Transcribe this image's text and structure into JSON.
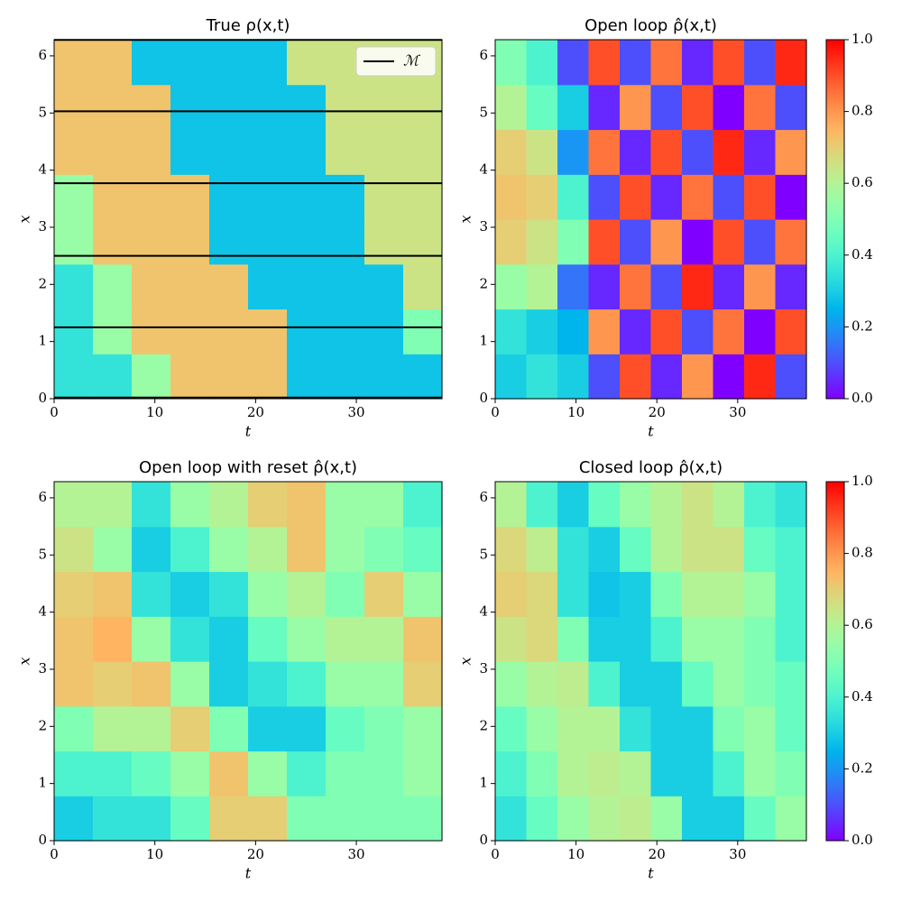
{
  "chart_data": [
    {
      "type": "heatmap",
      "title": "True ρ(x,t)",
      "xlabel": "t",
      "ylabel": "x",
      "xlim": [
        0,
        38.5
      ],
      "ylim": [
        0,
        6.283
      ],
      "xticks": [
        0,
        10,
        20,
        30
      ],
      "yticks": [
        0,
        1,
        2,
        3,
        4,
        5,
        6
      ],
      "zlim": [
        0,
        1
      ],
      "colormap": "rainbow",
      "z": [
        [
          0.35,
          0.35,
          0.55,
          0.72,
          0.72,
          0.72,
          0.28,
          0.28,
          0.28,
          0.28
        ],
        [
          0.35,
          0.55,
          0.72,
          0.72,
          0.72,
          0.72,
          0.28,
          0.28,
          0.28,
          0.5
        ],
        [
          0.35,
          0.55,
          0.72,
          0.72,
          0.72,
          0.28,
          0.28,
          0.28,
          0.28,
          0.65
        ],
        [
          0.55,
          0.72,
          0.72,
          0.72,
          0.28,
          0.28,
          0.28,
          0.28,
          0.65,
          0.65
        ],
        [
          0.55,
          0.72,
          0.72,
          0.72,
          0.28,
          0.28,
          0.28,
          0.28,
          0.65,
          0.65
        ],
        [
          0.72,
          0.72,
          0.72,
          0.28,
          0.28,
          0.28,
          0.28,
          0.65,
          0.65,
          0.65
        ],
        [
          0.72,
          0.72,
          0.72,
          0.28,
          0.28,
          0.28,
          0.28,
          0.65,
          0.65,
          0.65
        ],
        [
          0.72,
          0.72,
          0.28,
          0.28,
          0.28,
          0.28,
          0.65,
          0.65,
          0.65,
          0.65
        ]
      ],
      "hlines": [
        0.02,
        1.25,
        2.5,
        3.77,
        5.03,
        6.28
      ],
      "hline_color": "#000000",
      "legend": {
        "label": "ℳ",
        "loc": "upper right"
      }
    },
    {
      "type": "heatmap",
      "title": "Open loop ρ̂(x,t)",
      "xlabel": "t",
      "ylabel": "x",
      "xlim": [
        0,
        38.5
      ],
      "ylim": [
        0,
        6.283
      ],
      "xticks": [
        0,
        10,
        20,
        30
      ],
      "yticks": [
        0,
        1,
        2,
        3,
        4,
        5,
        6
      ],
      "zlim": [
        0,
        1
      ],
      "colormap": "rainbow",
      "z": [
        [
          0.3,
          0.35,
          0.3,
          0.1,
          0.9,
          0.05,
          0.8,
          0.0,
          0.95,
          0.1
        ],
        [
          0.35,
          0.3,
          0.25,
          0.8,
          0.05,
          0.9,
          0.1,
          0.85,
          0.0,
          0.9
        ],
        [
          0.55,
          0.6,
          0.15,
          0.05,
          0.85,
          0.1,
          0.95,
          0.05,
          0.8,
          0.05
        ],
        [
          0.7,
          0.65,
          0.5,
          0.9,
          0.1,
          0.8,
          0.0,
          0.9,
          0.1,
          0.85
        ],
        [
          0.72,
          0.7,
          0.4,
          0.1,
          0.9,
          0.05,
          0.85,
          0.1,
          0.9,
          0.0
        ],
        [
          0.7,
          0.65,
          0.2,
          0.85,
          0.05,
          0.9,
          0.1,
          0.95,
          0.05,
          0.8
        ],
        [
          0.6,
          0.45,
          0.3,
          0.05,
          0.8,
          0.1,
          0.9,
          0.0,
          0.85,
          0.1
        ],
        [
          0.5,
          0.4,
          0.1,
          0.9,
          0.1,
          0.85,
          0.05,
          0.9,
          0.1,
          0.95
        ]
      ],
      "colorbar": {
        "ticks": [
          {
            "value": 0,
            "label": "0.0"
          },
          {
            "value": 0.2,
            "label": "0.2"
          },
          {
            "value": 0.4,
            "label": "0.4"
          },
          {
            "value": 0.6,
            "label": "0.6"
          },
          {
            "value": 0.8,
            "label": "0.8"
          },
          {
            "value": 1,
            "label": "1.0"
          }
        ]
      }
    },
    {
      "type": "heatmap",
      "title": "Open loop with reset ρ̂(x,t)",
      "xlabel": "t",
      "ylabel": "x",
      "xlim": [
        0,
        38.5
      ],
      "ylim": [
        0,
        6.283
      ],
      "xticks": [
        0,
        10,
        20,
        30
      ],
      "yticks": [
        0,
        1,
        2,
        3,
        4,
        5,
        6
      ],
      "zlim": [
        0,
        1
      ],
      "colormap": "rainbow",
      "z": [
        [
          0.3,
          0.35,
          0.35,
          0.45,
          0.7,
          0.7,
          0.5,
          0.5,
          0.5,
          0.5
        ],
        [
          0.4,
          0.4,
          0.45,
          0.55,
          0.72,
          0.55,
          0.4,
          0.5,
          0.5,
          0.55
        ],
        [
          0.5,
          0.6,
          0.6,
          0.7,
          0.5,
          0.3,
          0.3,
          0.45,
          0.5,
          0.55
        ],
        [
          0.72,
          0.7,
          0.72,
          0.55,
          0.3,
          0.35,
          0.4,
          0.55,
          0.55,
          0.7
        ],
        [
          0.72,
          0.75,
          0.55,
          0.35,
          0.3,
          0.45,
          0.55,
          0.6,
          0.6,
          0.72
        ],
        [
          0.7,
          0.72,
          0.35,
          0.3,
          0.35,
          0.55,
          0.6,
          0.5,
          0.7,
          0.55
        ],
        [
          0.65,
          0.55,
          0.3,
          0.4,
          0.55,
          0.6,
          0.72,
          0.55,
          0.5,
          0.45
        ],
        [
          0.6,
          0.6,
          0.35,
          0.55,
          0.6,
          0.7,
          0.72,
          0.55,
          0.55,
          0.4
        ]
      ]
    },
    {
      "type": "heatmap",
      "title": "Closed loop ρ̂(x,t)",
      "xlabel": "t",
      "ylabel": "x",
      "xlim": [
        0,
        38.5
      ],
      "ylim": [
        0,
        6.283
      ],
      "xticks": [
        0,
        10,
        20,
        30
      ],
      "yticks": [
        0,
        1,
        2,
        3,
        4,
        5,
        6
      ],
      "zlim": [
        0,
        1
      ],
      "colormap": "rainbow",
      "z": [
        [
          0.35,
          0.45,
          0.55,
          0.6,
          0.62,
          0.55,
          0.3,
          0.3,
          0.45,
          0.55
        ],
        [
          0.4,
          0.5,
          0.6,
          0.62,
          0.6,
          0.3,
          0.3,
          0.4,
          0.55,
          0.5
        ],
        [
          0.45,
          0.55,
          0.6,
          0.6,
          0.35,
          0.3,
          0.3,
          0.5,
          0.55,
          0.45
        ],
        [
          0.55,
          0.6,
          0.62,
          0.4,
          0.3,
          0.3,
          0.45,
          0.55,
          0.5,
          0.45
        ],
        [
          0.65,
          0.68,
          0.5,
          0.3,
          0.3,
          0.4,
          0.55,
          0.55,
          0.5,
          0.4
        ],
        [
          0.7,
          0.68,
          0.35,
          0.28,
          0.3,
          0.5,
          0.6,
          0.6,
          0.55,
          0.4
        ],
        [
          0.68,
          0.62,
          0.35,
          0.3,
          0.45,
          0.6,
          0.65,
          0.65,
          0.45,
          0.4
        ],
        [
          0.6,
          0.4,
          0.3,
          0.45,
          0.55,
          0.6,
          0.65,
          0.6,
          0.4,
          0.35
        ]
      ],
      "colorbar": {
        "ticks": [
          {
            "value": 0,
            "label": "0.0"
          },
          {
            "value": 0.2,
            "label": "0.2"
          },
          {
            "value": 0.4,
            "label": "0.4"
          },
          {
            "value": 0.6,
            "label": "0.6"
          },
          {
            "value": 0.8,
            "label": "0.8"
          },
          {
            "value": 1,
            "label": "1.0"
          }
        ]
      }
    }
  ]
}
